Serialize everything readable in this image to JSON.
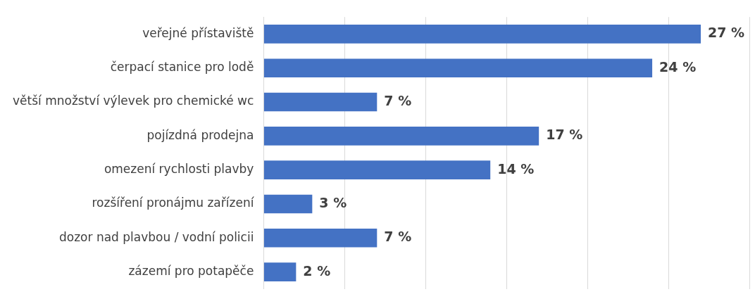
{
  "chart_data": {
    "type": "bar",
    "orientation": "horizontal",
    "categories": [
      "veřejné přístaviště",
      "čerpací stanice pro lodě",
      "větší množství výlevek pro chemické wc",
      "pojízdná prodejna",
      "omezení rychlosti plavby",
      "rozšíření pronájmu zařízení",
      "dozor nad plavbou / vodní policii",
      "zázemí pro potapěče"
    ],
    "values": [
      27,
      24,
      7,
      17,
      14,
      3,
      7,
      2
    ],
    "value_labels": [
      "27 %",
      "24 %",
      "7 %",
      "17 %",
      "14 %",
      "3 %",
      "7 %",
      "2 %"
    ],
    "color": "#4472c4",
    "xlim": [
      0,
      30
    ],
    "xticks": [
      {
        "value": 0,
        "label": null
      },
      {
        "value": 5,
        "label": null
      },
      {
        "value": 10,
        "label": null
      },
      {
        "value": 15,
        "label": null
      },
      {
        "value": 20,
        "label": null
      },
      {
        "value": 25,
        "label": null
      },
      {
        "value": 30,
        "label": null
      }
    ],
    "tick_labels": "y",
    "grid": "x",
    "legend": false
  }
}
